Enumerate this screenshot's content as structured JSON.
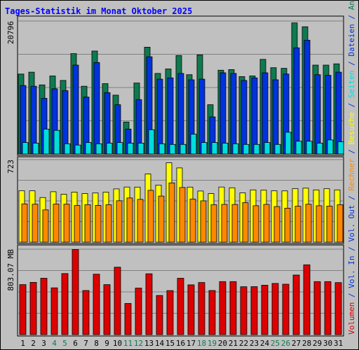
{
  "title": "Tages-Statistik im Monat Oktober 2025",
  "chart_data": {
    "type": "bar",
    "days": [
      "1",
      "2",
      "3",
      "4",
      "5",
      "6",
      "7",
      "8",
      "9",
      "10",
      "11",
      "12",
      "13",
      "14",
      "15",
      "16",
      "17",
      "18",
      "19",
      "20",
      "21",
      "22",
      "23",
      "24",
      "25",
      "26",
      "27",
      "28",
      "29",
      "30",
      "31"
    ],
    "weekend_days": [
      "4",
      "5",
      "11",
      "12",
      "18",
      "19",
      "25",
      "26"
    ],
    "panels": [
      {
        "id": "top",
        "max_label": "20796",
        "max": 20796,
        "series": [
          {
            "name": "Anfragen",
            "color": "#0f7a4f",
            "values": [
              12500,
              12800,
              10800,
              12200,
              11500,
              15700,
              10600,
              16100,
              11000,
              9200,
              5000,
              11100,
              16700,
              12600,
              13300,
              15400,
              12400,
              15500,
              7700,
              13100,
              13200,
              12100,
              12200,
              14800,
              13500,
              13400,
              20500,
              19900,
              13900,
              13900,
              14100
            ]
          },
          {
            "name": "Dateien",
            "color": "#0033dd",
            "values": [
              10700,
              10600,
              8700,
              10200,
              9900,
              13900,
              8900,
              14300,
              9600,
              7700,
              3900,
              8500,
              15200,
              11700,
              11900,
              12600,
              11600,
              11700,
              5800,
              12700,
              12600,
              11500,
              11900,
              12700,
              11600,
              12500,
              16600,
              17800,
              12400,
              12300,
              12800
            ]
          },
          {
            "name": "Seiten",
            "color": "#00dddd",
            "values": [
              1800,
              1700,
              3900,
              3700,
              1600,
              1400,
              1800,
              1600,
              1700,
              1800,
              1700,
              1700,
              3800,
              1600,
              1500,
              1500,
              3100,
              1800,
              1800,
              1700,
              1600,
              1500,
              1500,
              1800,
              1500,
              3400,
              2000,
              2000,
              1700,
              2200,
              1900
            ]
          }
        ]
      },
      {
        "id": "middle",
        "max_label": "723",
        "max": 723,
        "series": [
          {
            "name": "Besuche",
            "color": "#ffff00",
            "values": [
              451,
              450,
              391,
              442,
              420,
              438,
              425,
              431,
              438,
              466,
              483,
              482,
              597,
              500,
              695,
              650,
              482,
              448,
              426,
              483,
              476,
              432,
              458,
              455,
              450,
              449,
              468,
              473,
              458,
              468,
              458
            ]
          },
          {
            "name": "Rechner",
            "color": "#ff8800",
            "values": [
              335,
              333,
              283,
              334,
              333,
              321,
              328,
              322,
              328,
              363,
              387,
              375,
              454,
              404,
              519,
              479,
              378,
              362,
              328,
              331,
              330,
              347,
              319,
              331,
              312,
              298,
              315,
              332,
              319,
              315,
              328
            ]
          }
        ]
      },
      {
        "id": "bottom",
        "max_label": "803.07 MB",
        "max": 803.07,
        "series": [
          {
            "name": "Volumen",
            "color": "#dd0000",
            "values": [
              470,
              491,
              530,
              440,
              574,
              800,
              415,
              568,
              470,
              634,
              293,
              437,
              572,
              368,
              414,
              530,
              468,
              490,
              415,
              498,
              498,
              450,
              451,
              465,
              481,
              474,
              560,
              656,
              498,
              498,
              489
            ]
          }
        ]
      }
    ],
    "side_legend": [
      {
        "text": "Volumen",
        "color": "#dd0000"
      },
      {
        "text": " / ",
        "color": "#0033dd"
      },
      {
        "text": "Vol. In",
        "color": "#0033dd"
      },
      {
        "text": " / ",
        "color": "#0033dd"
      },
      {
        "text": "Vol. Out",
        "color": "#0033dd"
      },
      {
        "text": " / ",
        "color": "#0033dd"
      },
      {
        "text": "Rechner",
        "color": "#ff8800"
      },
      {
        "text": " / ",
        "color": "#0033dd"
      },
      {
        "text": "Besuche",
        "color": "#ffff00"
      },
      {
        "text": " / ",
        "color": "#0033dd"
      },
      {
        "text": "Seiten",
        "color": "#00dddd"
      },
      {
        "text": " / ",
        "color": "#0033dd"
      },
      {
        "text": "Dateien",
        "color": "#0033dd"
      },
      {
        "text": " / ",
        "color": "#0033dd"
      },
      {
        "text": "Anfragen",
        "color": "#0f7a4f"
      }
    ],
    "colors": {
      "background": "#c0c0c0",
      "plot_background": "#c0c0c0",
      "weekday_label": "#000000",
      "weekend_label": "#0f7a4f",
      "title": "#0000ff"
    }
  }
}
